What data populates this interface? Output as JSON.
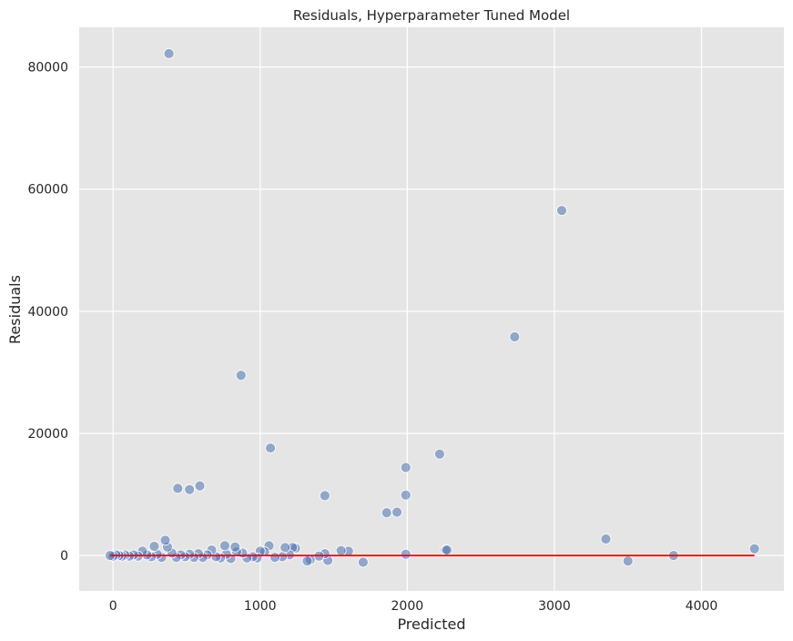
{
  "chart_data": {
    "type": "scatter",
    "title": "Residuals, Hyperparameter Tuned Model",
    "xlabel": "Predicted",
    "ylabel": "Residuals",
    "xlim": [
      -230,
      4560
    ],
    "ylim": [
      -5800,
      86500
    ],
    "xticks": [
      0,
      1000,
      2000,
      3000,
      4000
    ],
    "yticks": [
      0,
      20000,
      40000,
      60000,
      80000
    ],
    "grid": true,
    "point_color": "#4c72b0",
    "line_color": "#ff0000",
    "background_color": "#e5e5e5",
    "reference_line": {
      "x": [
        -20,
        4360
      ],
      "y": [
        0,
        0
      ]
    },
    "points": [
      {
        "x": 380,
        "y": 82200
      },
      {
        "x": 3050,
        "y": 56500
      },
      {
        "x": 2730,
        "y": 35800
      },
      {
        "x": 870,
        "y": 29500
      },
      {
        "x": 1070,
        "y": 17600
      },
      {
        "x": 2220,
        "y": 16600
      },
      {
        "x": 1990,
        "y": 14400
      },
      {
        "x": 440,
        "y": 11000
      },
      {
        "x": 520,
        "y": 10800
      },
      {
        "x": 590,
        "y": 11400
      },
      {
        "x": 1440,
        "y": 9800
      },
      {
        "x": 1990,
        "y": 9900
      },
      {
        "x": 1860,
        "y": 7000
      },
      {
        "x": 1930,
        "y": 7100
      },
      {
        "x": 3350,
        "y": 2700
      },
      {
        "x": 4360,
        "y": 1100
      },
      {
        "x": 3810,
        "y": 0
      },
      {
        "x": 3500,
        "y": -900
      },
      {
        "x": 2260,
        "y": 900
      },
      {
        "x": 2270,
        "y": 900
      },
      {
        "x": 1990,
        "y": 200
      },
      {
        "x": 1700,
        "y": -1100
      },
      {
        "x": 1600,
        "y": 700
      },
      {
        "x": 1550,
        "y": 800
      },
      {
        "x": 1460,
        "y": -800
      },
      {
        "x": 1440,
        "y": 300
      },
      {
        "x": 1400,
        "y": -100
      },
      {
        "x": 1340,
        "y": -700
      },
      {
        "x": 1320,
        "y": -900
      },
      {
        "x": 1240,
        "y": 1200
      },
      {
        "x": 1220,
        "y": 1300
      },
      {
        "x": 1200,
        "y": 100
      },
      {
        "x": 1170,
        "y": 1300
      },
      {
        "x": 1150,
        "y": -200
      },
      {
        "x": 1100,
        "y": -300
      },
      {
        "x": 1060,
        "y": 1600
      },
      {
        "x": 1030,
        "y": 600
      },
      {
        "x": 1000,
        "y": 700
      },
      {
        "x": 980,
        "y": -400
      },
      {
        "x": 950,
        "y": -200
      },
      {
        "x": 910,
        "y": -400
      },
      {
        "x": 880,
        "y": 400
      },
      {
        "x": 840,
        "y": 600
      },
      {
        "x": 830,
        "y": 1400
      },
      {
        "x": 800,
        "y": -500
      },
      {
        "x": 770,
        "y": 200
      },
      {
        "x": 760,
        "y": 1600
      },
      {
        "x": 730,
        "y": -400
      },
      {
        "x": 700,
        "y": -200
      },
      {
        "x": 670,
        "y": 900
      },
      {
        "x": 640,
        "y": 100
      },
      {
        "x": 610,
        "y": -300
      },
      {
        "x": 580,
        "y": 300
      },
      {
        "x": 550,
        "y": -300
      },
      {
        "x": 520,
        "y": 200
      },
      {
        "x": 490,
        "y": -200
      },
      {
        "x": 460,
        "y": 100
      },
      {
        "x": 430,
        "y": -300
      },
      {
        "x": 400,
        "y": 400
      },
      {
        "x": 370,
        "y": 1400
      },
      {
        "x": 355,
        "y": 2500
      },
      {
        "x": 330,
        "y": -300
      },
      {
        "x": 300,
        "y": 200
      },
      {
        "x": 280,
        "y": 1500
      },
      {
        "x": 260,
        "y": -200
      },
      {
        "x": 230,
        "y": 100
      },
      {
        "x": 200,
        "y": 700
      },
      {
        "x": 170,
        "y": -100
      },
      {
        "x": 140,
        "y": 100
      },
      {
        "x": 110,
        "y": -100
      },
      {
        "x": 80,
        "y": 100
      },
      {
        "x": 60,
        "y": -100
      },
      {
        "x": 40,
        "y": 0
      },
      {
        "x": 20,
        "y": 100
      },
      {
        "x": 0,
        "y": -100
      },
      {
        "x": -20,
        "y": 0
      }
    ]
  }
}
